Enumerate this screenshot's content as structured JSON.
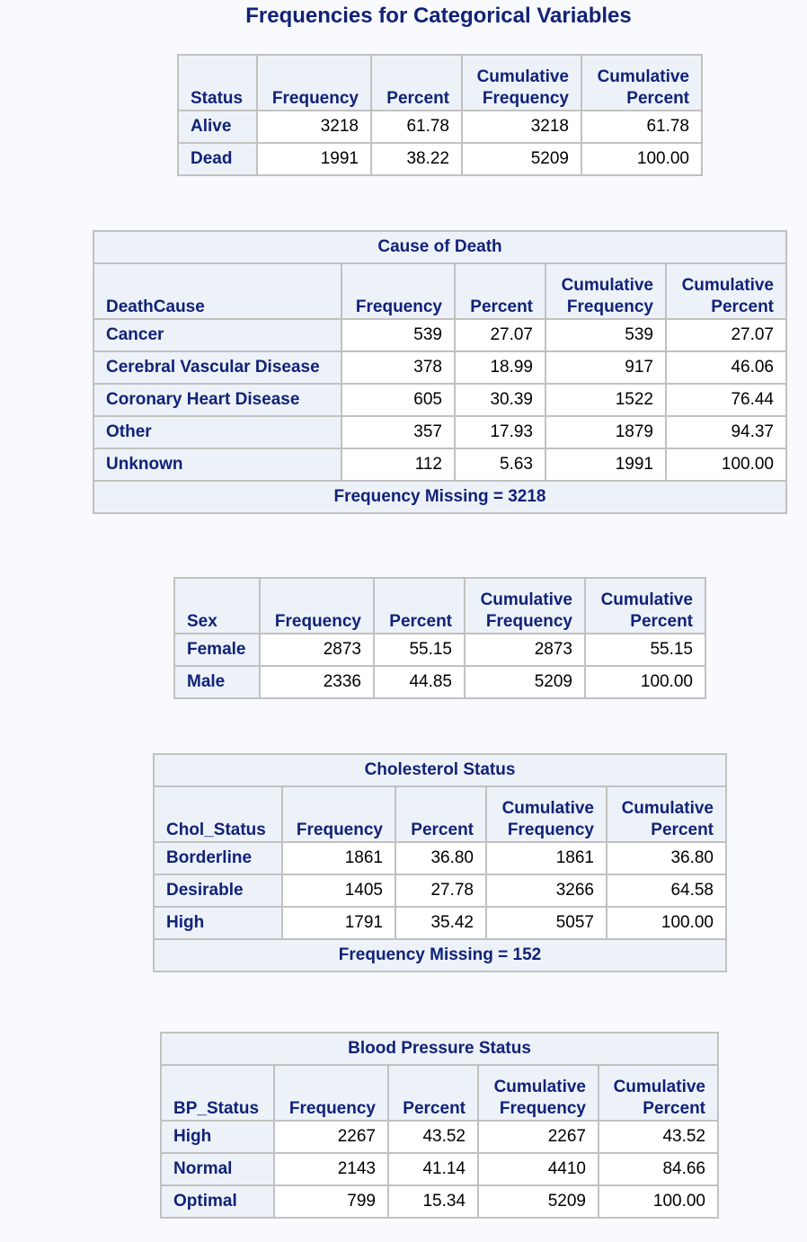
{
  "title": "Frequencies for Categorical Variables",
  "tables": [
    {
      "id": "status",
      "caption": "",
      "var": "Status",
      "headers": {
        "freq": "Frequency",
        "pct": "Percent",
        "cumfreq": "Cumulative Frequency",
        "cumpct": "Cumulative Percent"
      },
      "rows": [
        {
          "label": "Alive",
          "freq": "3218",
          "pct": "61.78",
          "cumfreq": "3218",
          "cumpct": "61.78"
        },
        {
          "label": "Dead",
          "freq": "1991",
          "pct": "38.22",
          "cumfreq": "5209",
          "cumpct": "100.00"
        }
      ],
      "footer": ""
    },
    {
      "id": "deathcause",
      "caption": "Cause of Death",
      "var": "DeathCause",
      "headers": {
        "freq": "Frequency",
        "pct": "Percent",
        "cumfreq": "Cumulative Frequency",
        "cumpct": "Cumulative Percent"
      },
      "rows": [
        {
          "label": "Cancer",
          "freq": "539",
          "pct": "27.07",
          "cumfreq": "539",
          "cumpct": "27.07"
        },
        {
          "label": "Cerebral Vascular Disease",
          "freq": "378",
          "pct": "18.99",
          "cumfreq": "917",
          "cumpct": "46.06"
        },
        {
          "label": "Coronary Heart Disease",
          "freq": "605",
          "pct": "30.39",
          "cumfreq": "1522",
          "cumpct": "76.44"
        },
        {
          "label": "Other",
          "freq": "357",
          "pct": "17.93",
          "cumfreq": "1879",
          "cumpct": "94.37"
        },
        {
          "label": "Unknown",
          "freq": "112",
          "pct": "5.63",
          "cumfreq": "1991",
          "cumpct": "100.00"
        }
      ],
      "footer": "Frequency Missing = 3218"
    },
    {
      "id": "sex",
      "caption": "",
      "var": "Sex",
      "headers": {
        "freq": "Frequency",
        "pct": "Percent",
        "cumfreq": "Cumulative Frequency",
        "cumpct": "Cumulative Percent"
      },
      "rows": [
        {
          "label": "Female",
          "freq": "2873",
          "pct": "55.15",
          "cumfreq": "2873",
          "cumpct": "55.15"
        },
        {
          "label": "Male",
          "freq": "2336",
          "pct": "44.85",
          "cumfreq": "5209",
          "cumpct": "100.00"
        }
      ],
      "footer": ""
    },
    {
      "id": "chol",
      "caption": "Cholesterol Status",
      "var": "Chol_Status",
      "headers": {
        "freq": "Frequency",
        "pct": "Percent",
        "cumfreq": "Cumulative Frequency",
        "cumpct": "Cumulative Percent"
      },
      "rows": [
        {
          "label": "Borderline",
          "freq": "1861",
          "pct": "36.80",
          "cumfreq": "1861",
          "cumpct": "36.80"
        },
        {
          "label": "Desirable",
          "freq": "1405",
          "pct": "27.78",
          "cumfreq": "3266",
          "cumpct": "64.58"
        },
        {
          "label": "High",
          "freq": "1791",
          "pct": "35.42",
          "cumfreq": "5057",
          "cumpct": "100.00"
        }
      ],
      "footer": "Frequency Missing = 152"
    },
    {
      "id": "bp",
      "caption": "Blood Pressure Status",
      "var": "BP_Status",
      "headers": {
        "freq": "Frequency",
        "pct": "Percent",
        "cumfreq": "Cumulative Frequency",
        "cumpct": "Cumulative Percent"
      },
      "rows": [
        {
          "label": "High",
          "freq": "2267",
          "pct": "43.52",
          "cumfreq": "2267",
          "cumpct": "43.52"
        },
        {
          "label": "Normal",
          "freq": "2143",
          "pct": "41.14",
          "cumfreq": "4410",
          "cumpct": "84.66"
        },
        {
          "label": "Optimal",
          "freq": "799",
          "pct": "15.34",
          "cumfreq": "5209",
          "cumpct": "100.00"
        }
      ],
      "footer": ""
    }
  ],
  "colors": {
    "background": "#f9fafe",
    "header_bg": "#edf2f9",
    "header_text": "#112277",
    "border": "#c1c1c1",
    "cell_bg": "#ffffff",
    "cell_text": "#000000"
  }
}
